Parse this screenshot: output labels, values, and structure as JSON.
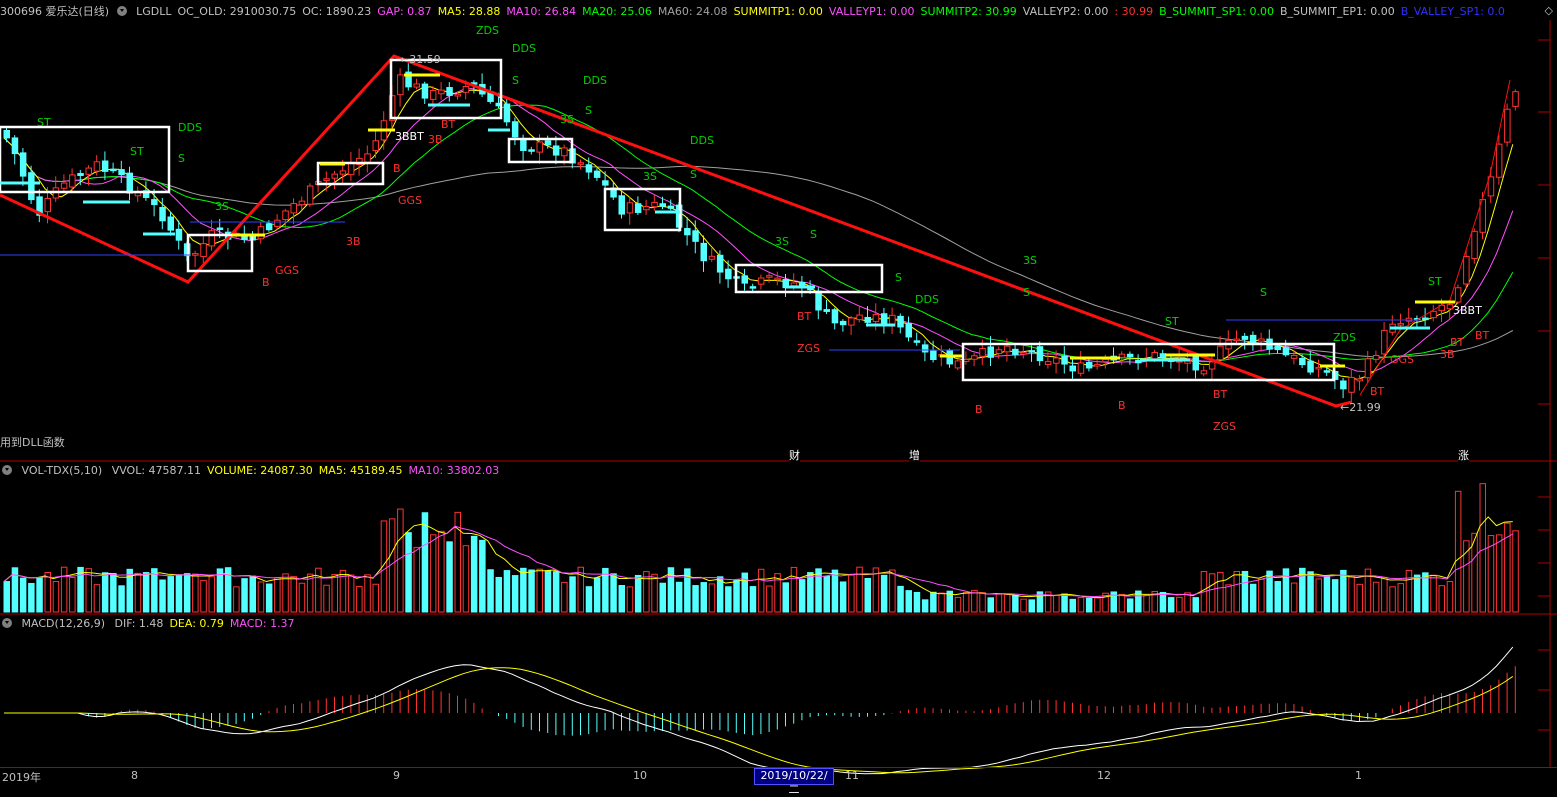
{
  "main_header": {
    "code_name": "300696 爱乐达(日线)",
    "items": [
      {
        "text": "LGDLL",
        "color": "#c0c0c0"
      },
      {
        "text": "OC_OLD: 2910030.75",
        "color": "#c0c0c0"
      },
      {
        "text": "OC: 1890.23",
        "color": "#c0c0c0"
      },
      {
        "text": "GAP: 0.87",
        "color": "#ff50ff"
      },
      {
        "text": "MA5: 28.88",
        "color": "#ffff00"
      },
      {
        "text": "MA10: 26.84",
        "color": "#ff50ff"
      },
      {
        "text": "MA20: 25.06",
        "color": "#00ff00"
      },
      {
        "text": "MA60: 24.08",
        "color": "#a0a0a0"
      },
      {
        "text": "SUMMITP1: 0.00",
        "color": "#ffff00"
      },
      {
        "text": "VALLEYP1: 0.00",
        "color": "#ff50ff"
      },
      {
        "text": "SUMMITP2: 30.99",
        "color": "#00ff00"
      },
      {
        "text": "VALLEYP2: 0.00",
        "color": "#c0c0c0"
      },
      {
        "text": ": 30.99",
        "color": "#ff3030"
      },
      {
        "text": "B_SUMMIT_SP1: 0.00",
        "color": "#00ff00"
      },
      {
        "text": "B_SUMMIT_EP1: 0.00",
        "color": "#c0c0c0"
      },
      {
        "text": "B_VALLEY_SP1: 0.0",
        "color": "#3030ff"
      }
    ],
    "right_icons": "◇"
  },
  "vol_header": {
    "name": "VOL-TDX(5,10)",
    "items": [
      {
        "text": "VVOL: 47587.11",
        "color": "#c0c0c0"
      },
      {
        "text": "VOLUME: 24087.30",
        "color": "#ffff00"
      },
      {
        "text": "MA5: 45189.45",
        "color": "#ffff00"
      },
      {
        "text": "MA10: 33802.03",
        "color": "#ff50ff"
      }
    ]
  },
  "macd_header": {
    "name": "MACD(12,26,9)",
    "items": [
      {
        "text": "DIF: 1.48",
        "color": "#c0c0c0"
      },
      {
        "text": "DEA: 0.79",
        "color": "#ffff00"
      },
      {
        "text": "MACD: 1.37",
        "color": "#ff50ff"
      }
    ]
  },
  "status_text": "用到DLL函数",
  "event_markers": [
    "财",
    "增",
    "涨"
  ],
  "price_marks": {
    "high": "31.59",
    "low": "21.99"
  },
  "x_axis": {
    "labels": [
      "2019年",
      "8",
      "9",
      "10",
      "11",
      "12",
      "1"
    ],
    "cursor_date": "2019/10/22/二"
  },
  "signal_labels": {
    "green": [
      "ZDS",
      "DDS",
      "ST",
      "S",
      "3S",
      "DDS",
      "ST",
      "DDS",
      "S",
      "3S",
      "DDS",
      "S",
      "3S",
      "S",
      "DDS",
      "S",
      "3S",
      "S",
      "ST",
      "S",
      "ZDS",
      "ST",
      "S",
      "3S"
    ],
    "red": [
      "3B",
      "B",
      "GGS",
      "3B",
      "B",
      "GGS",
      "3B",
      "BT",
      "3B",
      "BT",
      "ZGS",
      "B",
      "B",
      "BT",
      "ZGS",
      "BT",
      "GGS",
      "3B",
      "BT"
    ],
    "white": [
      "3BBT",
      "3BBT"
    ]
  },
  "colors": {
    "up": "#ff3232",
    "down": "#54ffff",
    "ma5": "#ffff00",
    "ma10": "#ff50ff",
    "ma20": "#00ff00",
    "ma60": "#a0a0a0",
    "trend_line": "#ff1010",
    "box": "#ffffff",
    "panel_divider": "#b00000",
    "blue_level": "#3040ff"
  }
}
